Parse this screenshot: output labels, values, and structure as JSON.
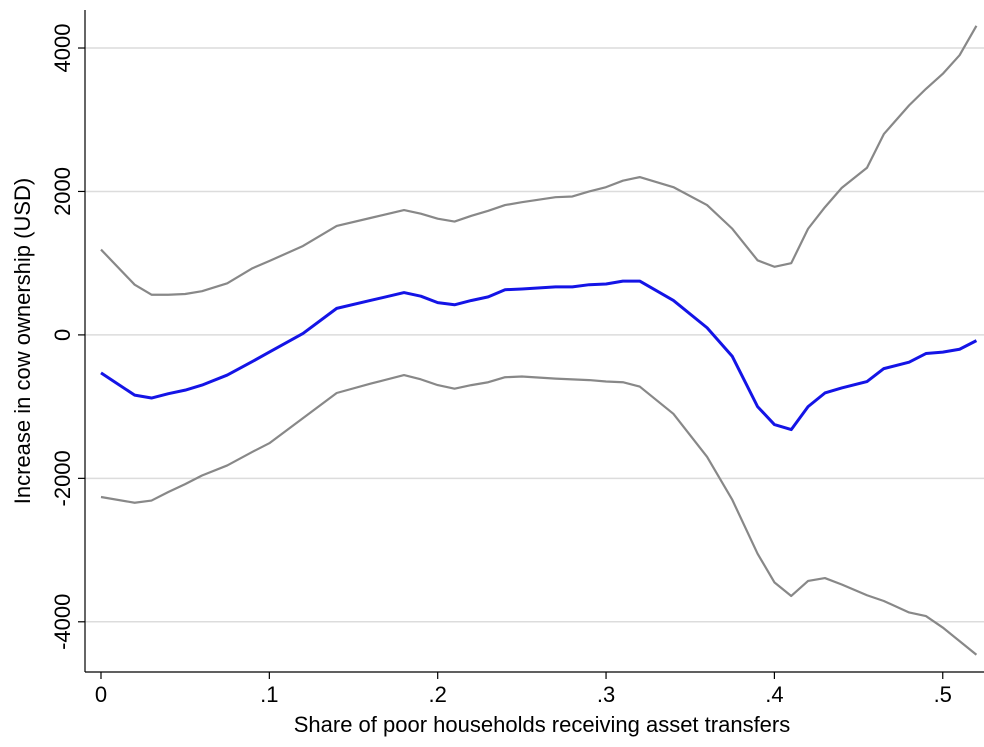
{
  "chart_data": {
    "type": "line",
    "x_label": "Share of poor households receiving asset transfers",
    "y_label": "Increase in cow ownership (USD)",
    "x": [
      0,
      0.02,
      0.03,
      0.04,
      0.05,
      0.06,
      0.075,
      0.09,
      0.1,
      0.12,
      0.14,
      0.16,
      0.18,
      0.19,
      0.2,
      0.21,
      0.22,
      0.23,
      0.24,
      0.25,
      0.27,
      0.28,
      0.29,
      0.3,
      0.31,
      0.32,
      0.34,
      0.36,
      0.375,
      0.39,
      0.4,
      0.41,
      0.42,
      0.43,
      0.44,
      0.455,
      0.465,
      0.48,
      0.49,
      0.5,
      0.51,
      0.52
    ],
    "series": [
      {
        "color": "#888888",
        "values": [
          1190,
          700,
          560,
          560,
          570,
          610,
          720,
          930,
          1030,
          1240,
          1520,
          1630,
          1740,
          1690,
          1620,
          1580,
          1660,
          1730,
          1810,
          1850,
          1920,
          1930,
          2000,
          2060,
          2150,
          2200,
          2060,
          1810,
          1480,
          1040,
          950,
          1000,
          1480,
          1780,
          2050,
          2330,
          2800,
          3200,
          3430,
          3640,
          3900,
          4310
        ]
      },
      {
        "color": "#1414e6",
        "values": [
          -530,
          -840,
          -880,
          -820,
          -770,
          -700,
          -560,
          -370,
          -240,
          20,
          370,
          480,
          590,
          540,
          450,
          420,
          480,
          530,
          630,
          640,
          670,
          670,
          700,
          710,
          750,
          750,
          480,
          100,
          -300,
          -1000,
          -1250,
          -1320,
          -1000,
          -810,
          -740,
          -650,
          -470,
          -380,
          -260,
          -240,
          -200,
          -80
        ]
      },
      {
        "color": "#888888",
        "values": [
          -2260,
          -2340,
          -2310,
          -2190,
          -2080,
          -1960,
          -1820,
          -1630,
          -1510,
          -1160,
          -810,
          -680,
          -560,
          -620,
          -700,
          -750,
          -700,
          -660,
          -590,
          -580,
          -610,
          -620,
          -630,
          -650,
          -660,
          -720,
          -1100,
          -1700,
          -2300,
          -3050,
          -3450,
          -3640,
          -3430,
          -3390,
          -3480,
          -3630,
          -3710,
          -3870,
          -3920,
          -4080,
          -4270,
          -4460
        ]
      }
    ],
    "xlim": [
      -0.0095,
      0.5245
    ],
    "ylim": [
      -4700,
      4530
    ],
    "xticks": [
      0,
      {
        "value": 0.1,
        "label": ".1"
      },
      {
        "value": 0.2,
        "label": ".2"
      },
      {
        "value": 0.3,
        "label": ".3"
      },
      {
        "value": 0.4,
        "label": ".4"
      },
      {
        "value": 0.5,
        "label": ".5"
      }
    ],
    "yticks": [
      -4000,
      -2000,
      0,
      2000,
      4000
    ],
    "grid": true
  }
}
